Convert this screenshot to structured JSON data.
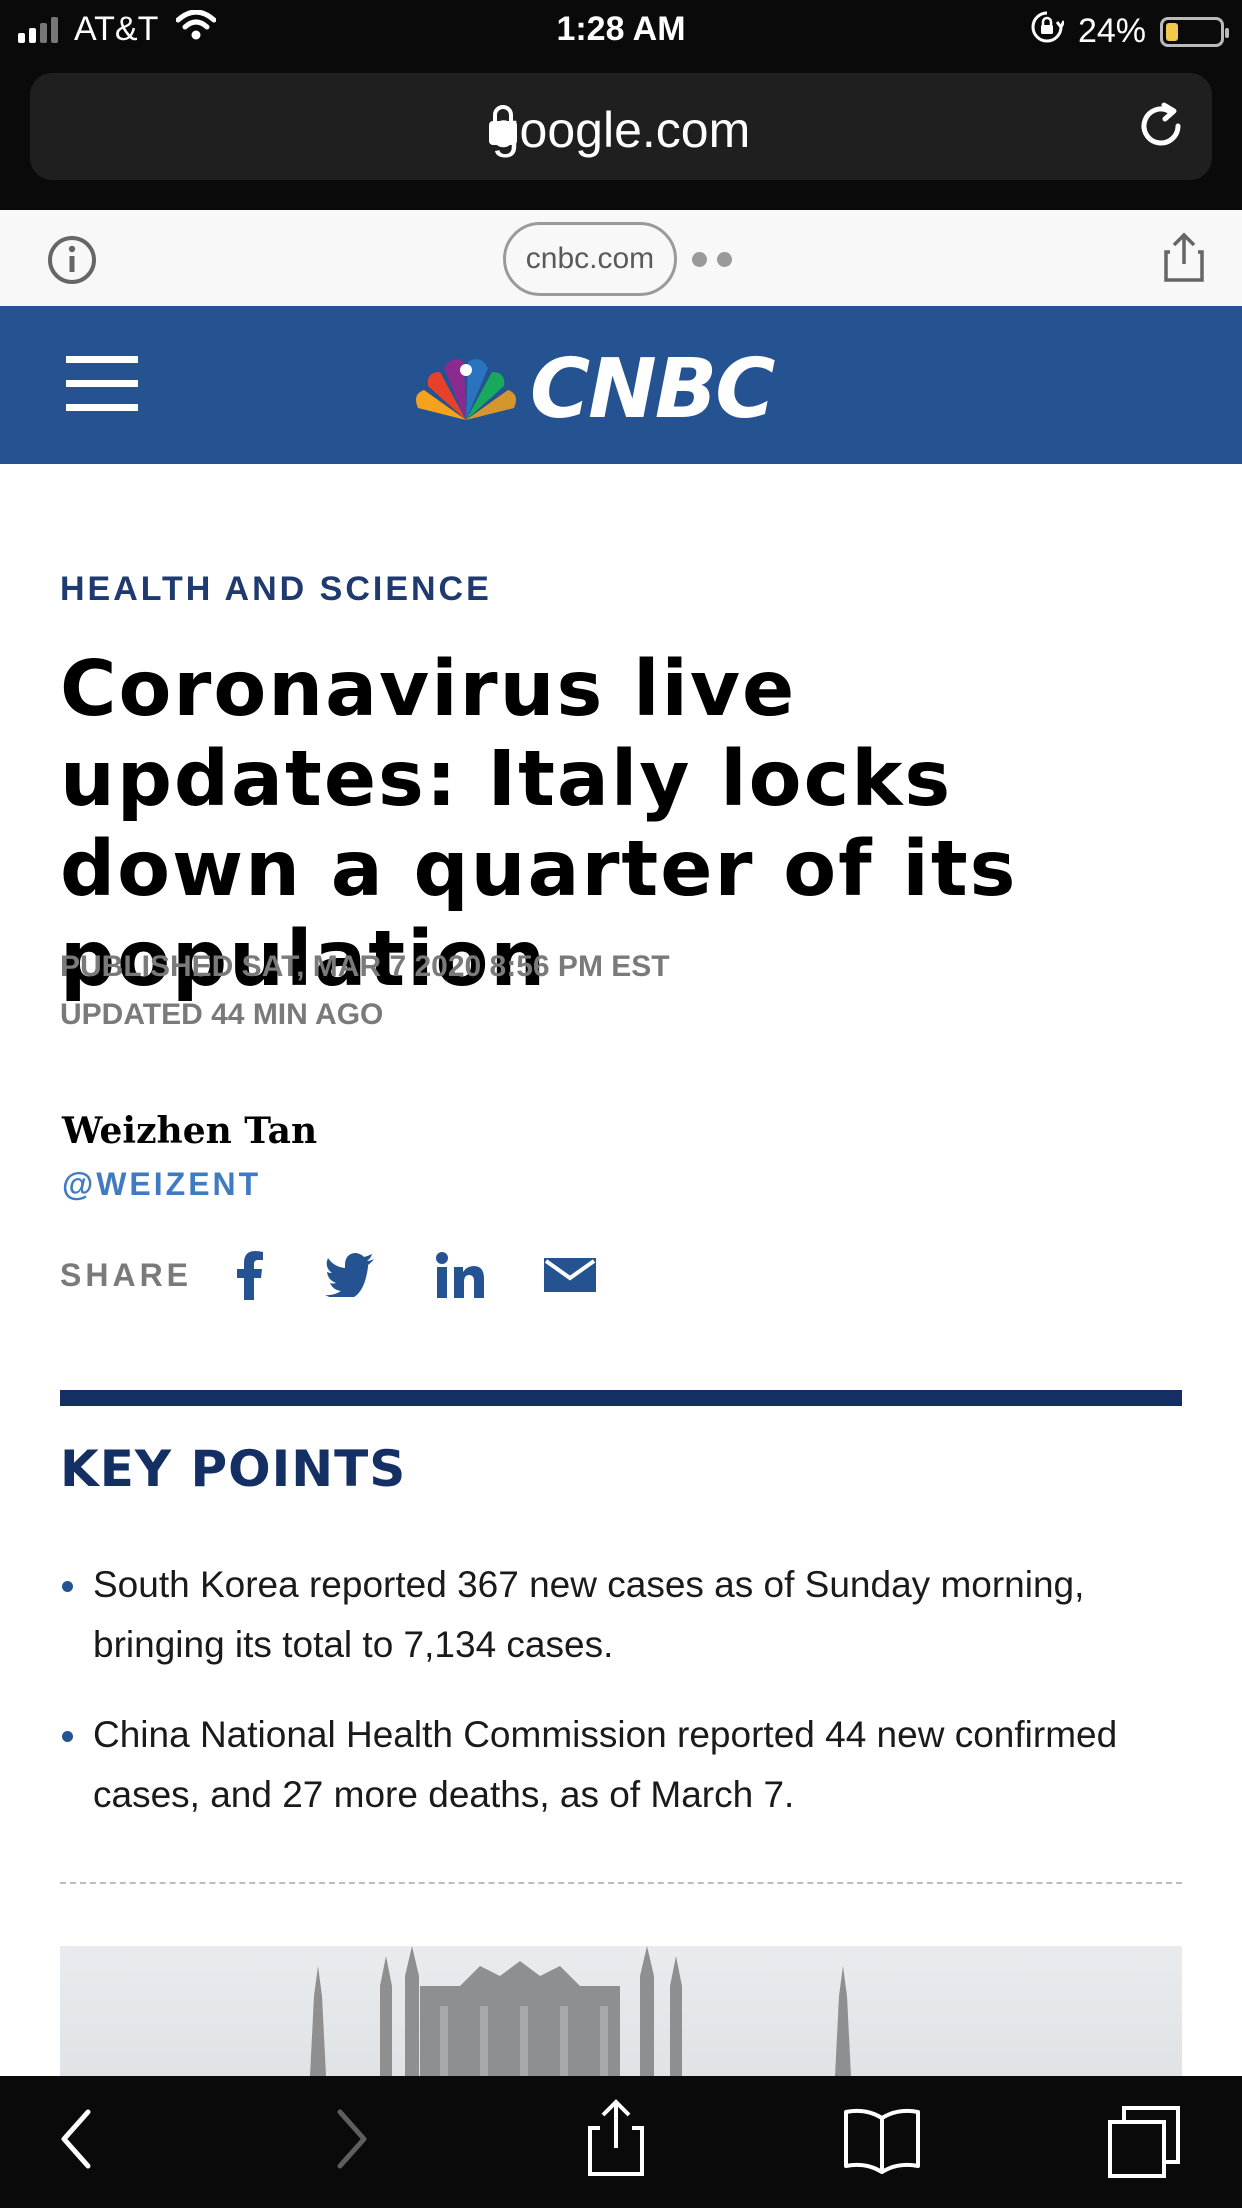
{
  "status_bar": {
    "carrier": "AT&T",
    "time": "1:28 AM",
    "battery_percent": "24%",
    "battery_level": 0.24
  },
  "browser": {
    "url": "google.com",
    "amp_domain": "cnbc.com"
  },
  "site": {
    "logo_text": "CNBC",
    "brand_color": "#255392"
  },
  "article": {
    "kicker": "HEALTH AND SCIENCE",
    "headline": "Coronavirus live updates: Italy locks down a quarter of its population",
    "published": "PUBLISHED SAT, MAR 7 2020 8:56 PM EST",
    "updated": "UPDATED 44 MIN AGO",
    "author": "Weizhen Tan",
    "author_handle": "@WEIZENT",
    "share_label": "SHARE",
    "share_icons": [
      "facebook-icon",
      "twitter-icon",
      "linkedin-icon",
      "email-icon"
    ]
  },
  "key_points": {
    "title": "KEY POINTS",
    "items": [
      "South Korea reported 367 new cases as of Sunday morning, bringing its total to 7,134 cases.",
      "China National Health Commission reported 44 new confirmed cases, and 27 more deaths, as of March 7."
    ]
  }
}
